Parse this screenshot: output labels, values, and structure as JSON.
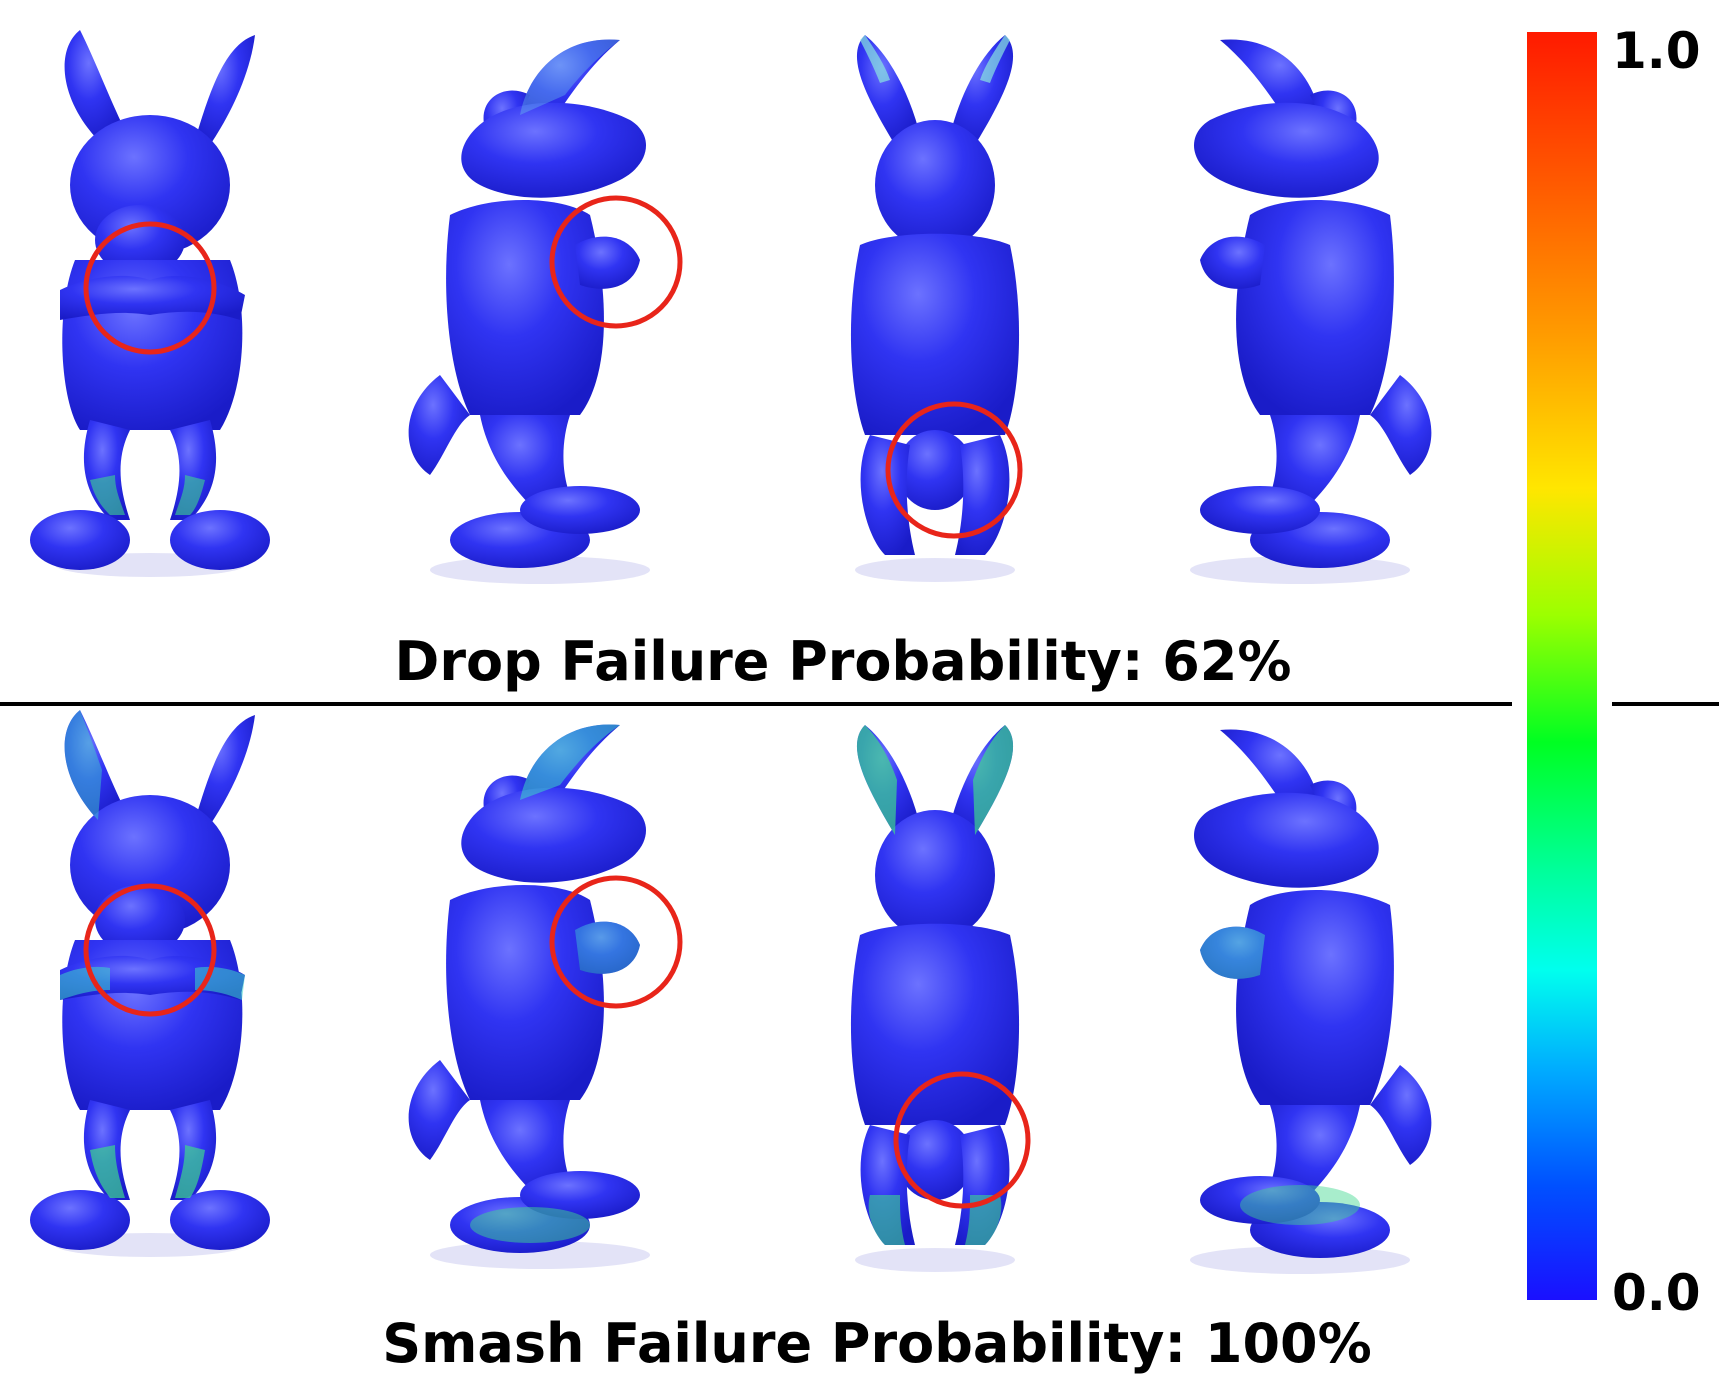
{
  "rows": [
    {
      "caption": "Drop Failure Probability: 62%"
    },
    {
      "caption": "Smash Failure Probability: 100%"
    }
  ],
  "views": [
    "front",
    "side-right",
    "back",
    "side-left"
  ],
  "colorbar": {
    "max_label": "1.0",
    "min_label": "0.0",
    "stops": [
      "#ff1a00",
      "#ff8800",
      "#ffe600",
      "#66ff00",
      "#00ff33",
      "#00ffcc",
      "#00ccff",
      "#0044ff",
      "#1a10ff"
    ]
  },
  "colors": {
    "mesh_base": "#2a2ef0",
    "highlight_circle": "#e8251a",
    "stress_green": "#3dd68f",
    "divider": "#000000"
  }
}
